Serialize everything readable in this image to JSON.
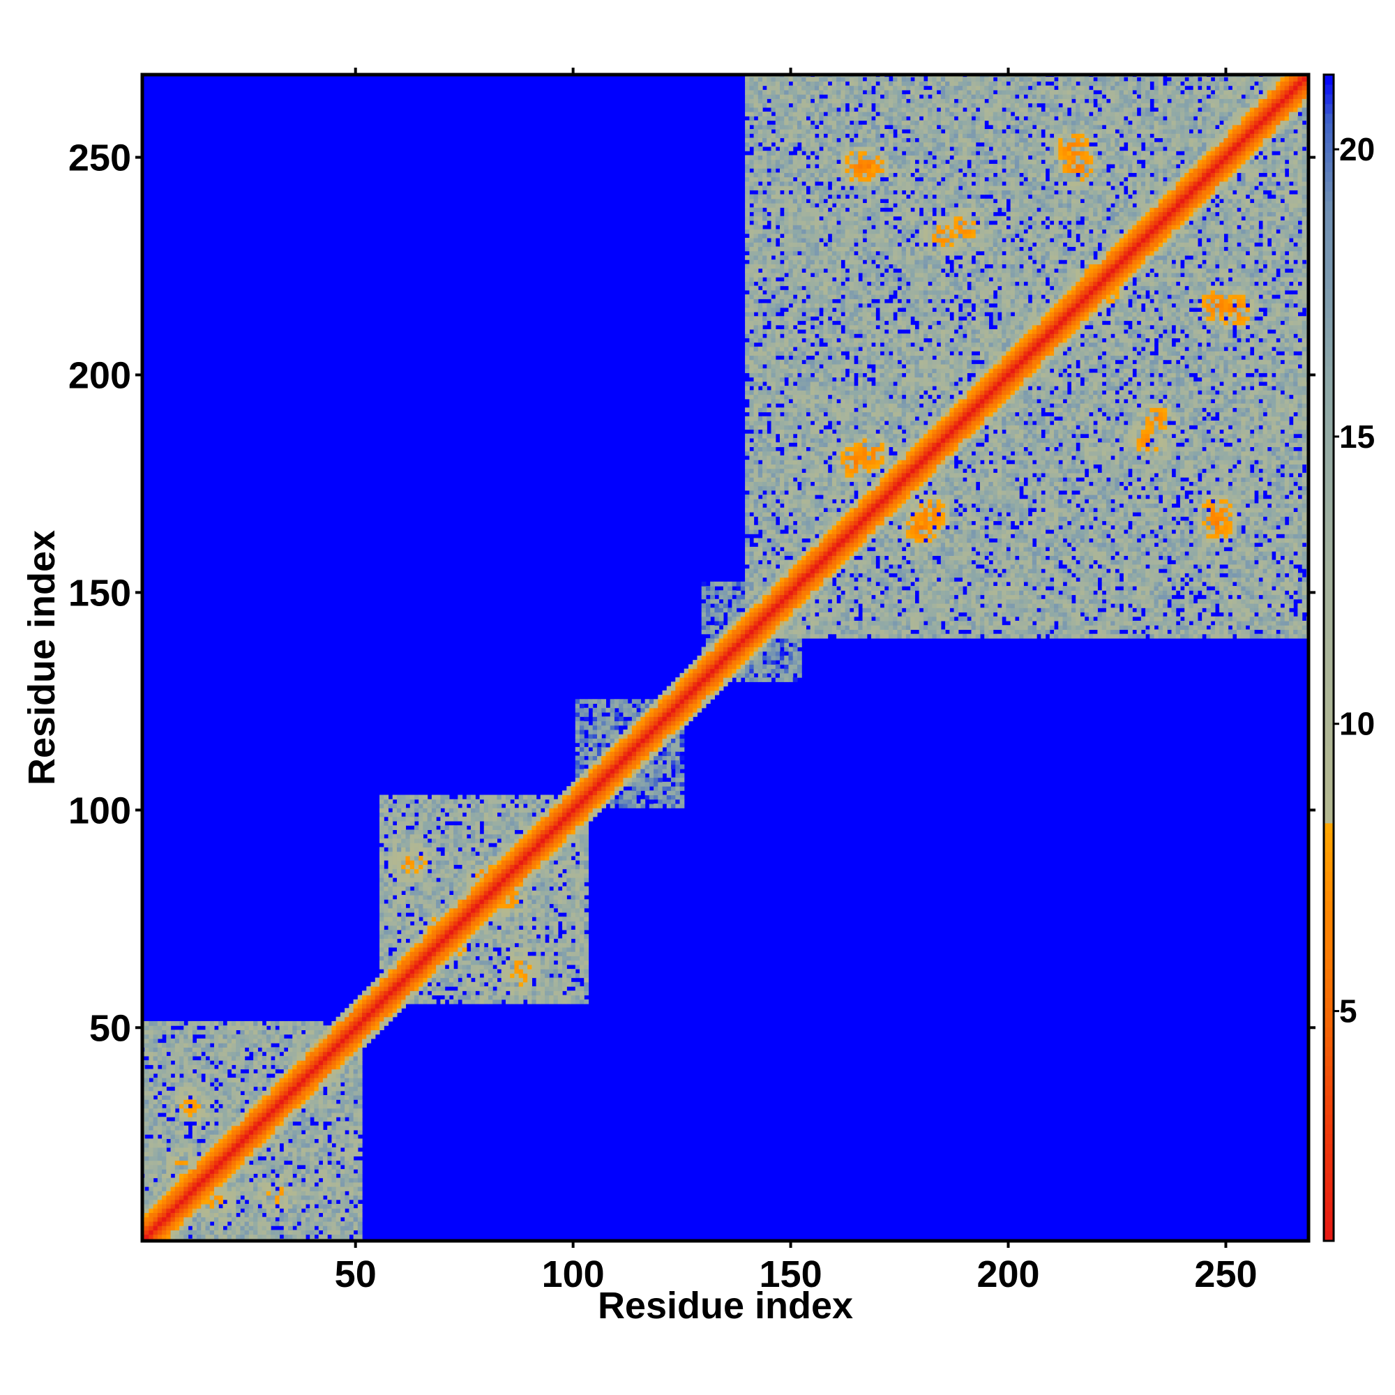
{
  "chart_data": {
    "type": "heatmap",
    "title": "",
    "xlabel": "Residue index",
    "ylabel": "Residue index",
    "xlim": [
      1,
      269
    ],
    "ylim": [
      1,
      269
    ],
    "x_ticks": [
      50,
      100,
      150,
      200,
      250
    ],
    "y_ticks": [
      50,
      100,
      150,
      200,
      250
    ],
    "x_tick_labels": [
      "50",
      "100",
      "150",
      "200",
      "250"
    ],
    "y_tick_labels": [
      "50",
      "100",
      "150",
      "200",
      "250"
    ],
    "grid": false,
    "colorbar": {
      "position": "right",
      "range": [
        1,
        21.3
      ],
      "ticks": [
        5,
        10,
        15,
        20
      ],
      "tick_labels": [
        "5",
        "10",
        "15",
        "20"
      ],
      "colors": [
        {
          "value": 1,
          "color": "#e61a14"
        },
        {
          "value": 3,
          "color": "#f03c0a"
        },
        {
          "value": 5,
          "color": "#f56a05"
        },
        {
          "value": 7,
          "color": "#ff8c00"
        },
        {
          "value": 8.2,
          "color": "#ffa500"
        },
        {
          "value": 8.3,
          "color": "#b4b890"
        },
        {
          "value": 12,
          "color": "#a8b49c"
        },
        {
          "value": 16,
          "color": "#8ea8a8"
        },
        {
          "value": 19,
          "color": "#6f8fb4"
        },
        {
          "value": 20.5,
          "color": "#3f63c8"
        },
        {
          "value": 21.3,
          "color": "#0000ff"
        }
      ]
    },
    "background_value": 21.3,
    "diagonal": {
      "from": 1,
      "to": 269,
      "value": 1
    },
    "contact_blocks": [
      {
        "x": [
          1,
          51
        ],
        "y": [
          1,
          51
        ],
        "value": 13.5
      },
      {
        "x": [
          56,
          103
        ],
        "y": [
          56,
          103
        ],
        "value": 13.5
      },
      {
        "x": [
          101,
          125
        ],
        "y": [
          101,
          125
        ],
        "value": 17.5
      },
      {
        "x": [
          130,
          152
        ],
        "y": [
          130,
          152
        ],
        "value": 17.5
      },
      {
        "x": [
          140,
          269
        ],
        "y": [
          140,
          269
        ],
        "value": 13.5
      }
    ],
    "contact_hotspots": [
      {
        "x": 28,
        "y": 28,
        "value": 6
      },
      {
        "x": 10,
        "y": 18,
        "value": 7
      },
      {
        "x": 32,
        "y": 12,
        "value": 7
      },
      {
        "x": 70,
        "y": 72,
        "value": 6
      },
      {
        "x": 80,
        "y": 85,
        "value": 6.5
      },
      {
        "x": 88,
        "y": 62,
        "value": 7
      },
      {
        "x": 64,
        "y": 88,
        "value": 7
      },
      {
        "x": 166,
        "y": 248,
        "value": 6
      },
      {
        "x": 185,
        "y": 232,
        "value": 6.5
      },
      {
        "x": 215,
        "y": 252,
        "value": 6
      },
      {
        "x": 248,
        "y": 216,
        "value": 6
      },
      {
        "x": 234,
        "y": 190,
        "value": 6.5
      },
      {
        "x": 248,
        "y": 168,
        "value": 6
      },
      {
        "x": 180,
        "y": 165,
        "value": 6
      },
      {
        "x": 168,
        "y": 182,
        "value": 6
      },
      {
        "x": 220,
        "y": 222,
        "value": 6
      }
    ]
  }
}
